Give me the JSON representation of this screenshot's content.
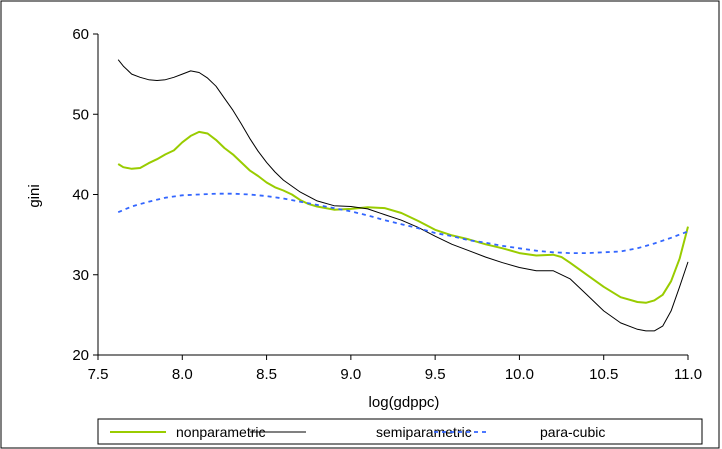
{
  "chart_data": {
    "type": "line",
    "title": "",
    "xlabel": "log(gdppc)",
    "ylabel": "gini",
    "xlim": [
      7.5,
      11.0
    ],
    "ylim": [
      20,
      60
    ],
    "x_ticks": [
      "7.5",
      "8.0",
      "8.5",
      "9.0",
      "9.5",
      "10.0",
      "10.5",
      "11.0"
    ],
    "y_ticks": [
      "20",
      "30",
      "40",
      "50",
      "60"
    ],
    "grid": false,
    "legend_position": "bottom",
    "series": [
      {
        "name": "nonparametric",
        "color": "#99cc00",
        "style": "solid",
        "x": [
          7.62,
          7.65,
          7.7,
          7.75,
          7.8,
          7.85,
          7.9,
          7.95,
          8.0,
          8.05,
          8.1,
          8.15,
          8.2,
          8.25,
          8.3,
          8.35,
          8.4,
          8.45,
          8.5,
          8.55,
          8.6,
          8.65,
          8.7,
          8.75,
          8.8,
          8.9,
          9.0,
          9.1,
          9.2,
          9.3,
          9.4,
          9.5,
          9.6,
          9.7,
          9.8,
          9.9,
          10.0,
          10.1,
          10.2,
          10.25,
          10.3,
          10.4,
          10.5,
          10.6,
          10.7,
          10.75,
          10.8,
          10.85,
          10.9,
          10.95,
          11.0
        ],
        "y": [
          43.8,
          43.4,
          43.2,
          43.3,
          43.9,
          44.4,
          45.0,
          45.5,
          46.5,
          47.3,
          47.8,
          47.6,
          46.8,
          45.8,
          45.0,
          44.0,
          43.0,
          42.3,
          41.5,
          40.9,
          40.5,
          40.0,
          39.3,
          38.8,
          38.5,
          38.1,
          38.2,
          38.4,
          38.3,
          37.7,
          36.7,
          35.6,
          34.9,
          34.4,
          33.8,
          33.3,
          32.7,
          32.4,
          32.5,
          32.2,
          31.5,
          30.0,
          28.5,
          27.2,
          26.6,
          26.5,
          26.8,
          27.5,
          29.2,
          32.0,
          36.0
        ]
      },
      {
        "name": "semiparametric",
        "color": "#000000",
        "style": "solid",
        "x": [
          7.62,
          7.65,
          7.7,
          7.75,
          7.8,
          7.85,
          7.9,
          7.95,
          8.0,
          8.05,
          8.1,
          8.15,
          8.2,
          8.25,
          8.3,
          8.35,
          8.4,
          8.45,
          8.5,
          8.55,
          8.6,
          8.7,
          8.8,
          8.9,
          9.0,
          9.1,
          9.2,
          9.3,
          9.4,
          9.5,
          9.6,
          9.7,
          9.8,
          9.9,
          10.0,
          10.1,
          10.2,
          10.3,
          10.4,
          10.5,
          10.6,
          10.7,
          10.75,
          10.8,
          10.85,
          10.9,
          10.95,
          11.0
        ],
        "y": [
          56.8,
          56.0,
          55.0,
          54.6,
          54.3,
          54.2,
          54.3,
          54.6,
          55.0,
          55.4,
          55.2,
          54.5,
          53.5,
          52.0,
          50.5,
          48.8,
          47.0,
          45.4,
          44.0,
          42.8,
          41.8,
          40.3,
          39.2,
          38.6,
          38.5,
          38.2,
          37.5,
          36.8,
          35.9,
          34.8,
          33.8,
          33.0,
          32.2,
          31.5,
          30.9,
          30.5,
          30.5,
          29.5,
          27.5,
          25.5,
          24.0,
          23.2,
          23.0,
          23.0,
          23.6,
          25.5,
          28.5,
          31.6
        ]
      },
      {
        "name": "para-cubic",
        "color": "#3366ff",
        "style": "dashed",
        "x": [
          7.62,
          7.7,
          7.8,
          7.9,
          8.0,
          8.1,
          8.2,
          8.3,
          8.4,
          8.5,
          8.6,
          8.7,
          8.8,
          8.9,
          9.0,
          9.1,
          9.2,
          9.3,
          9.4,
          9.5,
          9.6,
          9.7,
          9.8,
          9.9,
          10.0,
          10.1,
          10.2,
          10.3,
          10.4,
          10.5,
          10.6,
          10.7,
          10.8,
          10.9,
          11.0
        ],
        "y": [
          37.8,
          38.5,
          39.1,
          39.6,
          39.9,
          40.0,
          40.1,
          40.1,
          40.0,
          39.8,
          39.5,
          39.1,
          38.7,
          38.3,
          37.9,
          37.4,
          36.8,
          36.3,
          35.8,
          35.2,
          34.8,
          34.3,
          34.0,
          33.6,
          33.3,
          33.0,
          32.8,
          32.7,
          32.7,
          32.8,
          32.9,
          33.3,
          33.9,
          34.6,
          35.4
        ]
      }
    ]
  }
}
